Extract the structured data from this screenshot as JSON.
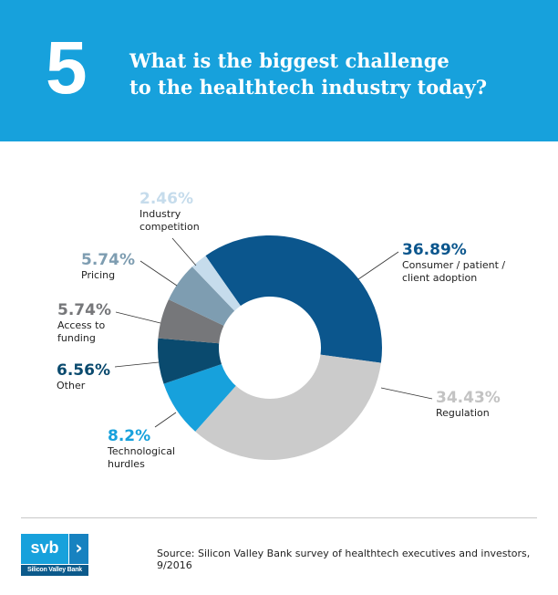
{
  "header": {
    "number": "5",
    "title_line1": "What is the biggest challenge",
    "title_line2": "to the healthtech industry today?"
  },
  "chart_data": {
    "type": "pie",
    "donut": true,
    "title": "What is the biggest challenge to the healthtech industry today?",
    "slices": [
      {
        "label": "Consumer / patient / client adoption",
        "label_lines": [
          "Consumer / patient /",
          "client adoption"
        ],
        "value": 36.89,
        "value_text": "36.89%",
        "color": "#0b568d",
        "label_color": "#0b568d"
      },
      {
        "label": "Regulation",
        "label_lines": [
          "Regulation"
        ],
        "value": 34.43,
        "value_text": "34.43%",
        "color": "#cbcbcb",
        "label_color": "#c3c3c3"
      },
      {
        "label": "Technological hurdles",
        "label_lines": [
          "Technological",
          "hurdles"
        ],
        "value": 8.2,
        "value_text": "8.2%",
        "color": "#17a1dc",
        "label_color": "#17a1dc"
      },
      {
        "label": "Other",
        "label_lines": [
          "Other"
        ],
        "value": 6.56,
        "value_text": "6.56%",
        "color": "#0a4a6e",
        "label_color": "#0a4a6e"
      },
      {
        "label": "Access to funding",
        "label_lines": [
          "Access to",
          "funding"
        ],
        "value": 5.74,
        "value_text": "5.74%",
        "color": "#76777a",
        "label_color": "#76777a"
      },
      {
        "label": "Pricing",
        "label_lines": [
          "Pricing"
        ],
        "value": 5.74,
        "value_text": "5.74%",
        "color": "#7e9db1",
        "label_color": "#7e9db1"
      },
      {
        "label": "Industry competition",
        "label_lines": [
          "Industry",
          "competition"
        ],
        "value": 2.46,
        "value_text": "2.46%",
        "color": "#c6dcec",
        "label_color": "#c6dcec"
      }
    ]
  },
  "footer": {
    "logo_text": "svb",
    "logo_chevron": "›",
    "logo_name": "Silicon Valley Bank",
    "source": "Source: Silicon Valley Bank survey of healthtech executives and investors, 9/2016"
  }
}
